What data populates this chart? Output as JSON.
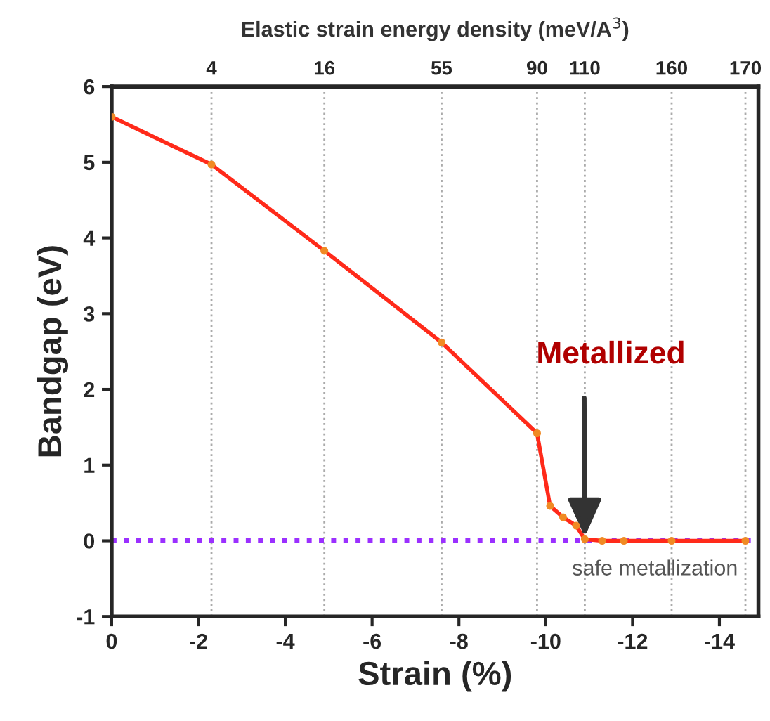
{
  "chart_data": {
    "type": "line",
    "xlabel": "Strain (%)",
    "ylabel": "Bandgap (eV)",
    "x2label": "Elastic strain energy density (meV/A$^{3}$)",
    "x": [
      0,
      -2.3,
      -4.9,
      -7.6,
      -9.8,
      -10.1,
      -10.4,
      -10.7,
      -10.9,
      -11.3,
      -11.8,
      -12.9,
      -14.6
    ],
    "series": [
      {
        "color": "#ff2a1a",
        "values": [
          5.6,
          4.97,
          3.83,
          2.62,
          1.42,
          0.46,
          0.31,
          0.2,
          0.02,
          0,
          0,
          0,
          0
        ]
      }
    ],
    "marker": "circle",
    "line_style": "solid",
    "xlim": [
      0,
      -14.9
    ],
    "xticks": [
      0,
      -2,
      -4,
      -6,
      -8,
      -10,
      -12,
      -14
    ],
    "ylim": [
      -1,
      6
    ],
    "yticks": [
      -1,
      0,
      1,
      2,
      3,
      4,
      5,
      6
    ],
    "ref_lines": [
      {
        "axis": "y",
        "value": 0,
        "label": "safe metallization",
        "color": "#9b30ff",
        "line_style": "dotted"
      },
      {
        "axis": "x",
        "value": -2.3,
        "color": "#aaaaaa",
        "line_style": "dotted"
      },
      {
        "axis": "x",
        "value": -4.9,
        "color": "#aaaaaa",
        "line_style": "dotted"
      },
      {
        "axis": "x",
        "value": -7.6,
        "color": "#aaaaaa",
        "line_style": "dotted"
      },
      {
        "axis": "x",
        "value": -9.8,
        "color": "#aaaaaa",
        "line_style": "dotted"
      },
      {
        "axis": "x",
        "value": -10.9,
        "color": "#aaaaaa",
        "line_style": "dotted"
      },
      {
        "axis": "x",
        "value": -12.9,
        "color": "#aaaaaa",
        "line_style": "dotted"
      },
      {
        "axis": "x",
        "value": -14.6,
        "color": "#aaaaaa",
        "line_style": "dotted"
      }
    ],
    "annotations": [
      {
        "text": "Metallized",
        "x": -10.9,
        "y": 0.05
      },
      {
        "text": "4",
        "x": -2.3,
        "y": 6
      },
      {
        "text": "16",
        "x": -4.9,
        "y": 6
      },
      {
        "text": "55",
        "x": -7.6,
        "y": 6
      },
      {
        "text": "90",
        "x": -9.8,
        "y": 6
      },
      {
        "text": "110",
        "x": -10.9,
        "y": 6
      },
      {
        "text": "160",
        "x": -12.9,
        "y": 6
      },
      {
        "text": "170",
        "x": -14.6,
        "y": 6
      }
    ]
  }
}
